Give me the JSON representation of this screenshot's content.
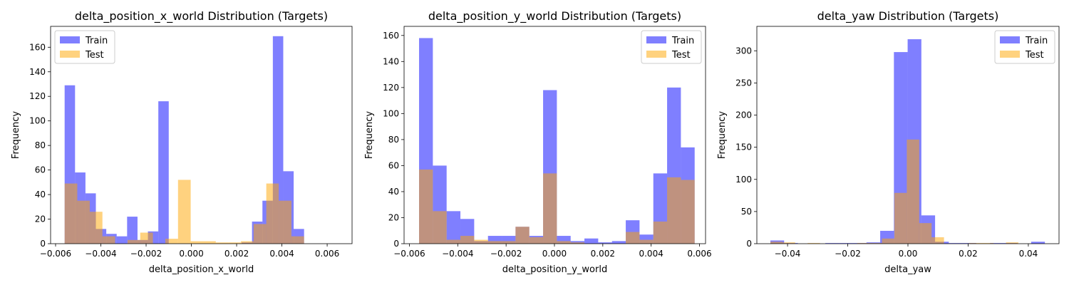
{
  "colors": {
    "train": "#0000ff",
    "test": "#ffa500",
    "bar_alpha": 0.5,
    "axes_edge": "#000000",
    "legend_edge": "#cccccc"
  },
  "chart_data": [
    {
      "type": "bar",
      "title": "delta_position_x_world Distribution (Targets)",
      "xlabel": "delta_position_x_world",
      "ylabel": "Frequency",
      "xlim": [
        -0.00622,
        0.0071
      ],
      "ylim": [
        0,
        177
      ],
      "xticks": [
        -0.006,
        -0.004,
        -0.002,
        0.0,
        0.002,
        0.004,
        0.006
      ],
      "xtick_labels": [
        "−0.006",
        "−0.004",
        "−0.002",
        "0.000",
        "0.002",
        "0.004",
        "0.006"
      ],
      "yticks": [
        0,
        20,
        40,
        60,
        80,
        100,
        120,
        140,
        160
      ],
      "yticks_labels": [
        "0",
        "20",
        "40",
        "60",
        "80",
        "100",
        "120",
        "140",
        "160"
      ],
      "legend": {
        "position": "upper left",
        "entries": [
          "Train",
          "Test"
        ]
      },
      "series": [
        {
          "name": "Train",
          "bin_edges": [
            -0.0056,
            -0.00514,
            -0.00468,
            -0.00422,
            -0.00376,
            -0.0033,
            -0.00284,
            -0.00238,
            -0.00192,
            -0.00146,
            -0.001,
            -0.00054,
            -8e-05,
            0.00038,
            0.00084,
            0.0013,
            0.00176,
            0.00222,
            0.00268,
            0.00314,
            0.0036,
            0.00406,
            0.00452,
            0.00498,
            0.00544,
            0.0059,
            0.00636
          ],
          "counts": [
            129,
            58,
            41,
            12,
            8,
            6,
            22,
            3,
            10,
            116,
            0,
            0,
            0,
            0,
            0,
            0,
            0,
            1,
            18,
            35,
            169,
            59,
            12,
            0,
            0,
            0
          ]
        },
        {
          "name": "Test",
          "bin_edges": [
            -0.0056,
            -0.00504,
            -0.00449,
            -0.00393,
            -0.00337,
            -0.00282,
            -0.00226,
            -0.0017,
            -0.00115,
            -0.00059,
            -3e-05,
            0.00052,
            0.00108,
            0.00164,
            0.00219,
            0.00275,
            0.00331,
            0.00386,
            0.00442,
            0.00498,
            0.00553,
            0.00609
          ],
          "counts": [
            49,
            35,
            26,
            6,
            0,
            3,
            9,
            0,
            4,
            52,
            2,
            2,
            1,
            1,
            2,
            16,
            49,
            35,
            6,
            0,
            0
          ]
        }
      ]
    },
    {
      "type": "bar",
      "title": "delta_position_y_world Distribution (Targets)",
      "xlabel": "delta_position_y_world",
      "ylabel": "Frequency",
      "xlim": [
        -0.00622,
        0.00625
      ],
      "ylim": [
        0,
        167
      ],
      "xticks": [
        -0.006,
        -0.004,
        -0.002,
        0.0,
        0.002,
        0.004,
        0.006
      ],
      "xtick_labels": [
        "−0.006",
        "−0.004",
        "−0.002",
        "0.000",
        "0.002",
        "0.004",
        "0.006"
      ],
      "yticks": [
        0,
        20,
        40,
        60,
        80,
        100,
        120,
        140,
        160
      ],
      "yticks_labels": [
        "0",
        "20",
        "40",
        "60",
        "80",
        "100",
        "120",
        "140",
        "160"
      ],
      "legend": {
        "position": "upper right",
        "entries": [
          "Train",
          "Test"
        ]
      },
      "series": [
        {
          "name": "Train",
          "bin_edges": [
            -0.0056,
            -0.00503,
            -0.00446,
            -0.00389,
            -0.00332,
            -0.00275,
            -0.00218,
            -0.00161,
            -0.00104,
            -0.00047,
            0.0001,
            0.00067,
            0.00124,
            0.00181,
            0.00238,
            0.00295,
            0.00352,
            0.00409,
            0.00466,
            0.00523,
            0.0058
          ],
          "counts": [
            158,
            60,
            25,
            19,
            2,
            6,
            6,
            13,
            6,
            118,
            6,
            2,
            4,
            1,
            2,
            18,
            7,
            54,
            120,
            74
          ]
        },
        {
          "name": "Test",
          "bin_edges": [
            -0.0056,
            -0.00503,
            -0.00446,
            -0.00389,
            -0.00332,
            -0.00275,
            -0.00218,
            -0.00161,
            -0.00104,
            -0.00047,
            0.0001,
            0.00067,
            0.00124,
            0.00181,
            0.00238,
            0.00295,
            0.00352,
            0.00409,
            0.00466,
            0.00523,
            0.0058
          ],
          "counts": [
            57,
            25,
            3,
            6,
            3,
            2,
            2,
            13,
            5,
            54,
            2,
            1,
            0,
            0,
            0,
            9,
            3,
            17,
            51,
            49
          ]
        }
      ]
    },
    {
      "type": "bar",
      "title": "delta_yaw Distribution (Targets)",
      "xlabel": "delta_yaw",
      "ylabel": "Frequency",
      "xlim": [
        -0.0502,
        0.0502
      ],
      "ylim": [
        0,
        338
      ],
      "xticks": [
        -0.04,
        -0.02,
        0.0,
        0.02,
        0.04
      ],
      "xtick_labels": [
        "−0.04",
        "−0.02",
        "0.00",
        "0.02",
        "0.04"
      ],
      "yticks": [
        0,
        50,
        100,
        150,
        200,
        250,
        300
      ],
      "yticks_labels": [
        "0",
        "50",
        "100",
        "150",
        "200",
        "250",
        "300"
      ],
      "legend": {
        "position": "upper right",
        "entries": [
          "Train",
          "Test"
        ]
      },
      "series": [
        {
          "name": "Train",
          "bin_edges": [
            -0.0457,
            -0.04114,
            -0.03658,
            -0.03202,
            -0.02746,
            -0.0229,
            -0.01834,
            -0.01378,
            -0.00922,
            -0.00466,
            -0.0001,
            0.00446,
            0.00902,
            0.01358,
            0.01814,
            0.0227,
            0.02726,
            0.03182,
            0.03638,
            0.04094,
            0.0455
          ],
          "counts": [
            5,
            1,
            0,
            0,
            1,
            1,
            1,
            2,
            20,
            298,
            318,
            44,
            3,
            1,
            1,
            0,
            1,
            1,
            0,
            3
          ]
        },
        {
          "name": "Test",
          "bin_edges": [
            -0.0457,
            -0.04158,
            -0.03746,
            -0.03334,
            -0.02922,
            -0.0251,
            -0.02098,
            -0.01686,
            -0.01274,
            -0.00862,
            -0.0045,
            -0.00038,
            0.00374,
            0.00786,
            0.01198,
            0.0161,
            0.02022,
            0.02434,
            0.02846,
            0.03258,
            0.0367
          ],
          "counts": [
            3,
            2,
            0,
            1,
            0,
            0,
            0,
            1,
            1,
            8,
            79,
            162,
            32,
            10,
            0,
            0,
            1,
            1,
            0,
            2
          ]
        }
      ]
    }
  ]
}
